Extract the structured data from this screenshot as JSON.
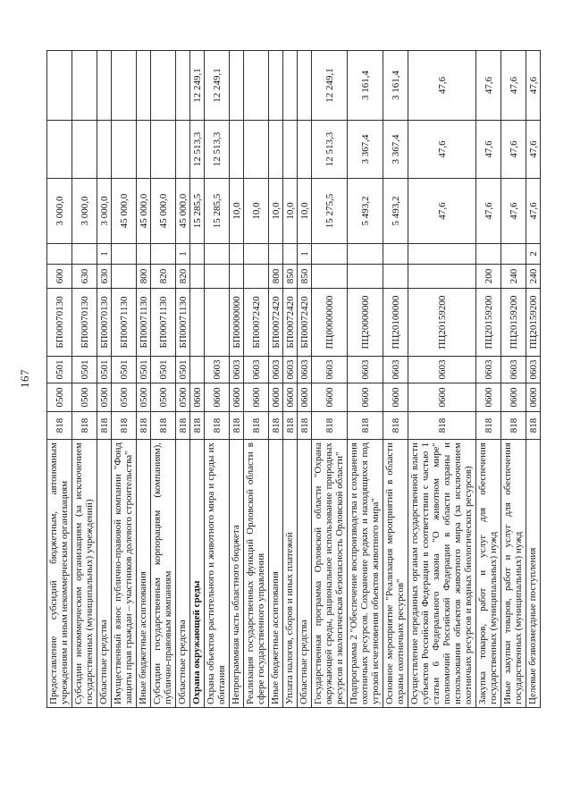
{
  "page_number": "167",
  "table": {
    "rows": [
      {
        "name": "Предоставление субсидий бюджетным, автономным учреждениям и иным некоммерческим организациям",
        "strong": false,
        "grbs": "818",
        "rz": "0500",
        "pr": "0501",
        "csr": "БП00070130",
        "vr": "600",
        "src": "",
        "y1": "3 000,0",
        "y2": "",
        "y3": ""
      },
      {
        "name": "Субсидии некоммерческим организациям (за исключением государственных (муниципальных) учреждений)",
        "strong": false,
        "grbs": "818",
        "rz": "0500",
        "pr": "0501",
        "csr": "БП00070130",
        "vr": "630",
        "src": "",
        "y1": "3 000,0",
        "y2": "",
        "y3": ""
      },
      {
        "name": "Областные средства",
        "strong": false,
        "grbs": "818",
        "rz": "0500",
        "pr": "0501",
        "csr": "БП00070130",
        "vr": "630",
        "src": "1",
        "y1": "3 000,0",
        "y2": "",
        "y3": ""
      },
      {
        "name": "Имущественный взнос публично-правовой компании \"Фонд защиты прав граждан – участников долевого строительства\"",
        "strong": false,
        "grbs": "818",
        "rz": "0500",
        "pr": "0501",
        "csr": "БП00071130",
        "vr": "",
        "src": "",
        "y1": "45 000,0",
        "y2": "",
        "y3": ""
      },
      {
        "name": "Иные бюджетные ассигнования",
        "strong": false,
        "grbs": "818",
        "rz": "0500",
        "pr": "0501",
        "csr": "БП00071130",
        "vr": "800",
        "src": "",
        "y1": "45 000,0",
        "y2": "",
        "y3": ""
      },
      {
        "name": "Субсидии государственным корпорациям (компаниям), публично-правовым компаниям",
        "strong": false,
        "grbs": "818",
        "rz": "0500",
        "pr": "0501",
        "csr": "БП00071130",
        "vr": "820",
        "src": "",
        "y1": "45 000,0",
        "y2": "",
        "y3": ""
      },
      {
        "name": "Областные средства",
        "strong": false,
        "grbs": "818",
        "rz": "0500",
        "pr": "0501",
        "csr": "БП00071130",
        "vr": "820",
        "src": "1",
        "y1": "45 000,0",
        "y2": "",
        "y3": ""
      },
      {
        "name": "Охрана окружающей среды",
        "strong": true,
        "grbs": "818",
        "rz": "0600",
        "pr": "",
        "csr": "",
        "vr": "",
        "src": "",
        "y1": "15 285,5",
        "y2": "12 513,3",
        "y3": "12 249,1"
      },
      {
        "name": "Охрана объектов растительного и животного мира и среды их обитания",
        "strong": false,
        "grbs": "818",
        "rz": "0600",
        "pr": "0603",
        "csr": "",
        "vr": "",
        "src": "",
        "y1": "15 285,5",
        "y2": "12 513,3",
        "y3": "12 249,1"
      },
      {
        "name": "Непрограммная часть областного бюджета",
        "strong": false,
        "grbs": "818",
        "rz": "0600",
        "pr": "0603",
        "csr": "БП00000000",
        "vr": "",
        "src": "",
        "y1": "10,0",
        "y2": "",
        "y3": ""
      },
      {
        "name": "Реализация государственных функций Орловской области в сфере государственного управления",
        "strong": false,
        "grbs": "818",
        "rz": "0600",
        "pr": "0603",
        "csr": "БП00072420",
        "vr": "",
        "src": "",
        "y1": "10,0",
        "y2": "",
        "y3": ""
      },
      {
        "name": "Иные бюджетные ассигнования",
        "strong": false,
        "grbs": "818",
        "rz": "0600",
        "pr": "0603",
        "csr": "БП00072420",
        "vr": "800",
        "src": "",
        "y1": "10,0",
        "y2": "",
        "y3": ""
      },
      {
        "name": "Уплата налогов, сборов и иных платежей",
        "strong": false,
        "grbs": "818",
        "rz": "0600",
        "pr": "0603",
        "csr": "БП00072420",
        "vr": "850",
        "src": "",
        "y1": "10,0",
        "y2": "",
        "y3": ""
      },
      {
        "name": "Областные средства",
        "strong": false,
        "grbs": "818",
        "rz": "0600",
        "pr": "0603",
        "csr": "БП00072420",
        "vr": "850",
        "src": "1",
        "y1": "10,0",
        "y2": "",
        "y3": ""
      },
      {
        "name": "Государственная программа Орловской области \"Охрана окружающей среды, рациональное использование природных ресурсов и экологическая безопасность Орловской области\"",
        "strong": false,
        "grbs": "818",
        "rz": "0600",
        "pr": "0603",
        "csr": "ПЦ00000000",
        "vr": "",
        "src": "",
        "y1": "15 275,5",
        "y2": "12 513,3",
        "y3": "12 249,1"
      },
      {
        "name": "Подпрограмма 2 \"Обеспечение воспроизводства и сохранения охотничьих ресурсов. Сохранение редких и находящихся под угрозой исчезновения объектов животного мира\"",
        "strong": false,
        "grbs": "818",
        "rz": "0600",
        "pr": "0603",
        "csr": "ПЦ20000000",
        "vr": "",
        "src": "",
        "y1": "5 493,2",
        "y2": "3 367,4",
        "y3": "3 161,4"
      },
      {
        "name": "Основное мероприятие \"Реализация мероприятий в области охраны охотничьих ресурсов\"",
        "strong": false,
        "grbs": "818",
        "rz": "0600",
        "pr": "0603",
        "csr": "ПЦ20100000",
        "vr": "",
        "src": "",
        "y1": "5 493,2",
        "y2": "3 367,4",
        "y3": "3 161,4"
      },
      {
        "name": "Осуществление переданных органам государственной власти субъектов Российской Федерации в соответствии с частью 1 статьи 6 Федерального закона \"О животном мире\" полномочий Российской Федерации в области охраны и использования объектов животного мира (за исключением охотничьих ресурсов и водных биологических ресурсов)",
        "strong": false,
        "grbs": "818",
        "rz": "0600",
        "pr": "0603",
        "csr": "ПЦ20159200",
        "vr": "",
        "src": "",
        "y1": "47,6",
        "y2": "47,6",
        "y3": "47,6"
      },
      {
        "name": "Закупка товаров, работ и услуг для обеспечения государственных (муниципальных) нужд",
        "strong": false,
        "grbs": "818",
        "rz": "0600",
        "pr": "0603",
        "csr": "ПЦ20159200",
        "vr": "200",
        "src": "",
        "y1": "47,6",
        "y2": "47,6",
        "y3": "47,6"
      },
      {
        "name": "Иные закупки товаров, работ и услуг для обеспечения государственных (муниципальных) нужд",
        "strong": false,
        "grbs": "818",
        "rz": "0600",
        "pr": "0603",
        "csr": "ПЦ20159200",
        "vr": "240",
        "src": "",
        "y1": "47,6",
        "y2": "47,6",
        "y3": "47,6"
      },
      {
        "name": "Целевые безвозмездные поступления",
        "strong": false,
        "grbs": "818",
        "rz": "0600",
        "pr": "0603",
        "csr": "ПЦ20159200",
        "vr": "240",
        "src": "2",
        "y1": "47,6",
        "y2": "47,6",
        "y3": "47,6"
      }
    ]
  }
}
